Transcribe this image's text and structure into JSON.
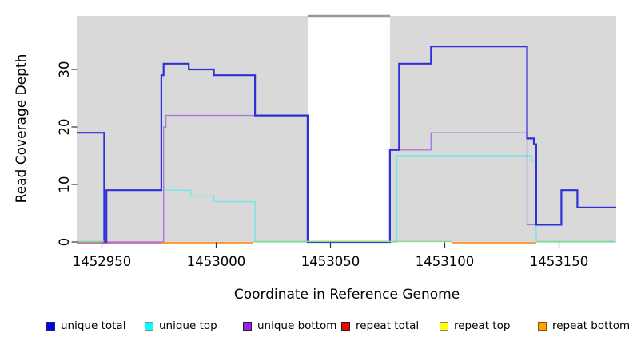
{
  "chart_data": {
    "type": "line",
    "step_style": "step-after",
    "title": "",
    "xlabel": "Coordinate in Reference Genome",
    "ylabel": "Read Coverage Depth",
    "xlim": [
      1452939,
      1453175
    ],
    "ylim": [
      0,
      39.3
    ],
    "xticks": [
      1452950,
      1453000,
      1453050,
      1453100,
      1453150
    ],
    "yticks": [
      0,
      10,
      20,
      30
    ],
    "grid": false,
    "plot_bg_color": "#d9d9d9",
    "masked_region": {
      "x_from": 1453040,
      "x_to": 1453076,
      "fill": "#ffffff",
      "top_border_color": "#999999"
    },
    "series": [
      {
        "name": "unique top",
        "color": "#70e8e4",
        "width": 1.4,
        "points": [
          [
            1452939,
            0
          ],
          [
            1452952,
            9
          ],
          [
            1452989,
            8
          ],
          [
            1452999,
            7
          ],
          [
            1453017,
            0
          ],
          [
            1453079,
            15
          ],
          [
            1453138,
            14
          ],
          [
            1453140,
            0
          ],
          [
            1453175,
            0
          ]
        ]
      },
      {
        "name": "unique bottom",
        "color": "#ab7ade",
        "width": 1.4,
        "points": [
          [
            1452939,
            0
          ],
          [
            1452977,
            20
          ],
          [
            1452978,
            22
          ],
          [
            1453040,
            0
          ],
          [
            1453076,
            16
          ],
          [
            1453094,
            19
          ],
          [
            1453136,
            3
          ],
          [
            1453151,
            9
          ],
          [
            1453158,
            6
          ],
          [
            1453175,
            6
          ]
        ]
      },
      {
        "name": "unique total",
        "color": "#3030d8",
        "width": 2.2,
        "points": [
          [
            1452939,
            19
          ],
          [
            1452951,
            0
          ],
          [
            1452952,
            9
          ],
          [
            1452976,
            29
          ],
          [
            1452977,
            31
          ],
          [
            1452988,
            30
          ],
          [
            1452999,
            29
          ],
          [
            1453017,
            22
          ],
          [
            1453040,
            0
          ],
          [
            1453076,
            16
          ],
          [
            1453080,
            31
          ],
          [
            1453094,
            34
          ],
          [
            1453136,
            18
          ],
          [
            1453139,
            17
          ],
          [
            1453140,
            3
          ],
          [
            1453151,
            9
          ],
          [
            1453158,
            6
          ],
          [
            1453175,
            6
          ]
        ]
      }
    ],
    "baseline_segments": [
      {
        "layer": "under",
        "color": "#d4608c",
        "x_from": 1452939,
        "x_to": 1452976
      },
      {
        "layer": "under",
        "color": "#ff8d1e",
        "x_from": 1452976,
        "x_to": 1453016
      },
      {
        "layer": "under",
        "color": "#ff8d1e",
        "x_from": 1453103,
        "x_to": 1453140
      },
      {
        "layer": "over",
        "color": "#8ed88e",
        "x_from": 1452939,
        "x_to": 1452951
      },
      {
        "layer": "over",
        "color": "#8ed88e",
        "x_from": 1453016,
        "x_to": 1453103
      },
      {
        "layer": "over",
        "color": "#8ed88e",
        "x_from": 1453140,
        "x_to": 1453174
      }
    ],
    "legend": [
      {
        "label": "unique total",
        "fill": "#0000ee",
        "border": "#222266"
      },
      {
        "label": "unique top",
        "fill": "#00ffff",
        "border": "#888888"
      },
      {
        "label": "unique bottom",
        "fill": "#a020f0",
        "border": "#222222"
      },
      {
        "label": "repeat total",
        "fill": "#ff0000",
        "border": "#222222"
      },
      {
        "label": "repeat top",
        "fill": "#ffff00",
        "border": "#888888"
      },
      {
        "label": "repeat bottom",
        "fill": "#ffa500",
        "border": "#885500"
      }
    ],
    "legend_position": "bottom"
  }
}
